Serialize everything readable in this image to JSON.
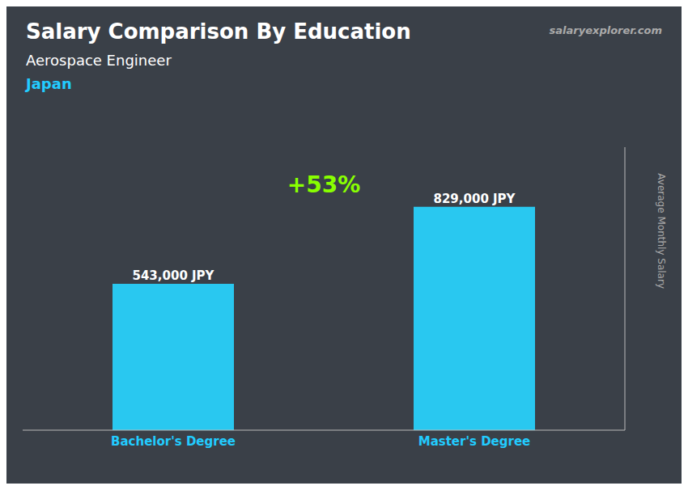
{
  "chart_data": {
    "type": "bar",
    "title": "Salary Comparison By Education",
    "subtitle": "Aerospace Engineer",
    "annotations": [
      "Japan",
      "+53%",
      "salaryexplorer.com"
    ],
    "categories": [
      "Bachelor's Degree",
      "Master's Degree"
    ],
    "values": [
      543000,
      829000
    ],
    "value_labels": [
      "543,000 JPY",
      "829,000 JPY"
    ],
    "data_labels": true,
    "color": "#29C8F0",
    "ylabel": "Average Monthly Salary",
    "ylim": [
      0,
      1050000
    ],
    "tick_labels": "x",
    "grid": false
  }
}
